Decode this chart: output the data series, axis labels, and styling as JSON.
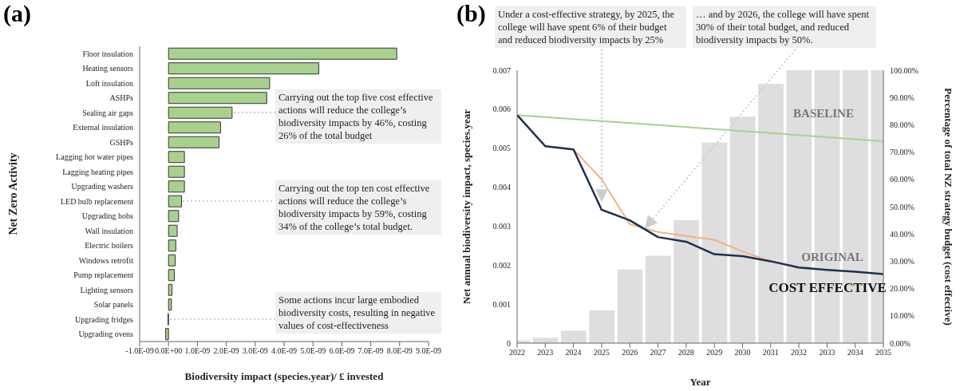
{
  "chart_data": [
    {
      "type": "bar",
      "orientation": "horizontal",
      "title": "(a)",
      "xlabel": "Biodiversity impact (species.year)/ £ invested",
      "ylabel": "Net Zero Activity",
      "categories": [
        "Floor insulation",
        "Heating sensors",
        "Loft insulation",
        "ASHPs",
        "Sealing air gaps",
        "External insulation",
        "GSHPs",
        "Lagging hot water pipes",
        "Lagging heating pipes",
        "Upgrading washers",
        "LED bulb replacement",
        "Upgrading hobs",
        "Wall insulation",
        "Electric boilers",
        "Windows retrofit",
        "Pump replacement",
        "Lighting  sensors",
        "Solar panels",
        "Upgrading fridges",
        "Upgrading ovens"
      ],
      "values": [
        7.9e-09,
        5.2e-09,
        3.5e-09,
        3.4e-09,
        2.2e-09,
        1.8e-09,
        1.75e-09,
        5.5e-10,
        5.5e-10,
        5.5e-10,
        4.5e-10,
        3.5e-10,
        3e-10,
        2.5e-10,
        2.3e-10,
        2e-10,
        1.2e-10,
        1e-10,
        -2e-11,
        -1e-10
      ],
      "color": "#a9d18e",
      "xlim": [
        -1e-09,
        9e-09
      ],
      "xticks": [
        {
          "value": -1e-09,
          "label": "-1.0E-09"
        },
        {
          "value": 0,
          "label": "0.0E+00"
        },
        {
          "value": 1e-09,
          "label": "1.0E-09"
        },
        {
          "value": 2e-09,
          "label": "2.0E-09"
        },
        {
          "value": 3e-09,
          "label": "3.0E-09"
        },
        {
          "value": 4e-09,
          "label": "4.0E-09"
        },
        {
          "value": 5e-09,
          "label": "5.0E-09"
        },
        {
          "value": 6e-09,
          "label": "6.0E-09"
        },
        {
          "value": 7e-09,
          "label": "7.0E-09"
        },
        {
          "value": 8e-09,
          "label": "8.0E-09"
        },
        {
          "value": 9e-09,
          "label": "9.0E-09"
        }
      ],
      "annotations": [
        {
          "text": "Carrying out the top five cost effective actions will reduce the college’s biodiversity impacts by 46%, costing 26% of the total budget",
          "x": 2.2e-09,
          "y": "Sealing air gaps"
        },
        {
          "text": "Carrying out the top ten cost effective actions will reduce the college’s biodiversity impacts by 59%, costing 34% of the college’s total budget.",
          "x": 4.5e-10,
          "y": "LED bulb replacement"
        },
        {
          "text": "Some actions incur large embodied biodiversity costs, resulting in negative values of cost-effectiveness",
          "x": 0,
          "y": "Upgrading fridges"
        }
      ]
    },
    {
      "type": "line",
      "title": "(b)",
      "xlabel": "Year",
      "ylabel": "Net annual biodiversity impact, species.year",
      "y2label": "Percentage of  total NZ strategy budget (cost effective)",
      "x": [
        2022,
        2023,
        2024,
        2025,
        2026,
        2027,
        2028,
        2029,
        2030,
        2031,
        2032,
        2033,
        2034,
        2035
      ],
      "series": [
        {
          "type": "bar",
          "axis": "y2",
          "color": "#dedede",
          "values": [
            1,
            2,
            4.5,
            12,
            27,
            32,
            45,
            73.5,
            83,
            95,
            100,
            100,
            100,
            100
          ]
        },
        {
          "name": "BASELINE",
          "color": "#a9d18e",
          "x": [
            2022,
            2035
          ],
          "values": [
            0.00585,
            0.00518
          ]
        },
        {
          "name": "ORIGINAL",
          "color": "#f4b183",
          "values": [
            0.00585,
            0.00505,
            0.00497,
            0.0042,
            0.00305,
            0.00285,
            0.00275,
            0.00265,
            0.00235,
            0.0021,
            0.00195,
            null,
            null,
            null
          ]
        },
        {
          "name": "COST EFFECTIVE",
          "color": "#1f3050",
          "values": [
            0.00585,
            0.00505,
            0.00497,
            0.00342,
            0.00315,
            0.00272,
            0.0026,
            0.00228,
            0.00223,
            0.0021,
            0.00194,
            0.00188,
            0.00183,
            0.00177
          ]
        }
      ],
      "xlim": [
        2022,
        2035
      ],
      "xticks": [
        2022,
        2023,
        2024,
        2025,
        2026,
        2027,
        2028,
        2029,
        2030,
        2031,
        2032,
        2033,
        2034,
        2035
      ],
      "ylim": [
        0,
        0.007
      ],
      "yticks": [
        0,
        0.001,
        0.002,
        0.003,
        0.004,
        0.005,
        0.006,
        0.007
      ],
      "y2lim": [
        0,
        100
      ],
      "y2ticks": [
        {
          "value": 0,
          "label": "0.00%"
        },
        {
          "value": 10,
          "label": "10.00%"
        },
        {
          "value": 20,
          "label": "20.00%"
        },
        {
          "value": 30,
          "label": "30.00%"
        },
        {
          "value": 40,
          "label": "40.00%"
        },
        {
          "value": 50,
          "label": "50.00%"
        },
        {
          "value": 60,
          "label": "60.00%"
        },
        {
          "value": 70,
          "label": "70.00%"
        },
        {
          "value": 80,
          "label": "80.00%"
        },
        {
          "value": 90,
          "label": "90.00%"
        },
        {
          "value": 100,
          "label": "100.00%"
        }
      ],
      "annotations": [
        {
          "text": "Under a cost-effective strategy, by 2025, the college will have spent 6% of their budget and reduced biodiversity impacts by 25%",
          "x": 2025,
          "y": 0.0037
        },
        {
          "text": "…  and by 2026, the college will have spent 30% of their total budget, and reduced biodiversity impacts by 50%.",
          "x": 2026.6,
          "y": 0.003
        }
      ]
    }
  ]
}
